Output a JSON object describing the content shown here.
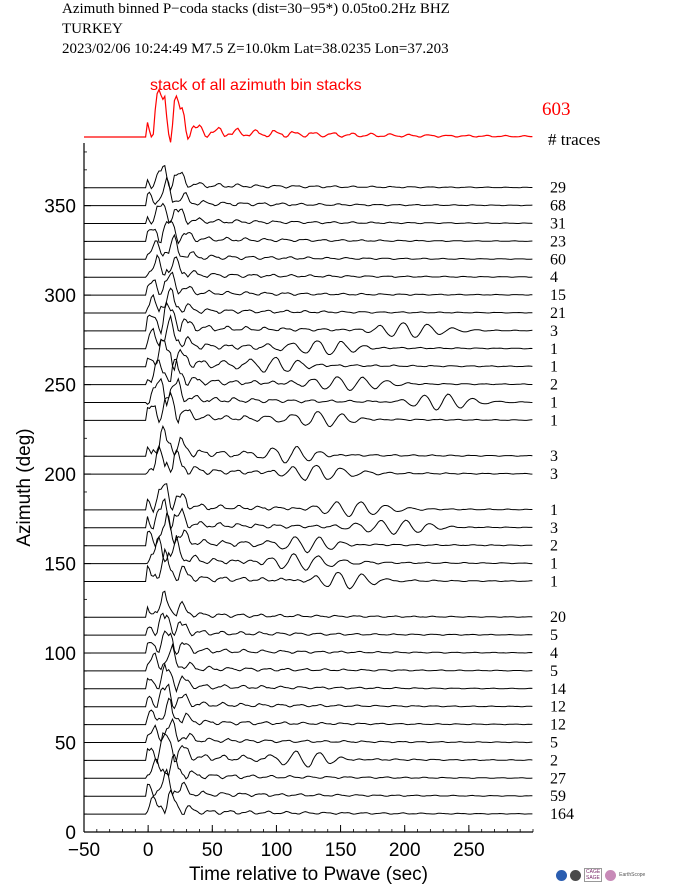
{
  "header": {
    "line1": "Azimuth binned P−coda stacks (dist=30−95*)  0.05to0.2Hz  BHZ",
    "line2": "TURKEY",
    "line3": "2023/02/06  10:24:49  M7.5  Z=10.0km Lat=38.0235 Lon=37.203"
  },
  "chart_data": {
    "type": "line",
    "title": "Azimuth binned P−coda stacks (dist=30−95*)  0.05to0.2Hz  BHZ",
    "xlabel": "Time relative to Pwave (sec)",
    "ylabel": "Azimuth (deg)",
    "xlim": [
      -50,
      300
    ],
    "ylim": [
      0,
      385
    ],
    "x_ticks": [
      "−50",
      "0",
      "50",
      "100",
      "150",
      "200",
      "250"
    ],
    "x_tick_values": [
      -50,
      0,
      50,
      100,
      150,
      200,
      250
    ],
    "y_ticks": [
      "0",
      "50",
      "100",
      "150",
      "200",
      "250",
      "300",
      "350"
    ],
    "y_tick_values": [
      0,
      50,
      100,
      150,
      200,
      250,
      300,
      350
    ],
    "stack_label": "stack of all azimuth bin stacks",
    "total_traces": "603",
    "traces_header": "# traces",
    "stack_color": "#ff0000",
    "trace_color": "#000000",
    "bins": [
      {
        "azimuth": 360,
        "traces": "29"
      },
      {
        "azimuth": 350,
        "traces": "68"
      },
      {
        "azimuth": 340,
        "traces": "31"
      },
      {
        "azimuth": 330,
        "traces": "23"
      },
      {
        "azimuth": 320,
        "traces": "60"
      },
      {
        "azimuth": 310,
        "traces": "4"
      },
      {
        "azimuth": 300,
        "traces": "15"
      },
      {
        "azimuth": 290,
        "traces": "21"
      },
      {
        "azimuth": 280,
        "traces": "3"
      },
      {
        "azimuth": 270,
        "traces": "1"
      },
      {
        "azimuth": 260,
        "traces": "1"
      },
      {
        "azimuth": 250,
        "traces": "2"
      },
      {
        "azimuth": 240,
        "traces": "1"
      },
      {
        "azimuth": 230,
        "traces": "1"
      },
      {
        "azimuth": 210,
        "traces": "3"
      },
      {
        "azimuth": 200,
        "traces": "3"
      },
      {
        "azimuth": 180,
        "traces": "1"
      },
      {
        "azimuth": 170,
        "traces": "3"
      },
      {
        "azimuth": 160,
        "traces": "2"
      },
      {
        "azimuth": 150,
        "traces": "1"
      },
      {
        "azimuth": 140,
        "traces": "1"
      },
      {
        "azimuth": 120,
        "traces": "20"
      },
      {
        "azimuth": 110,
        "traces": "5"
      },
      {
        "azimuth": 100,
        "traces": "4"
      },
      {
        "azimuth": 90,
        "traces": "5"
      },
      {
        "azimuth": 80,
        "traces": "14"
      },
      {
        "azimuth": 70,
        "traces": "12"
      },
      {
        "azimuth": 60,
        "traces": "12"
      },
      {
        "azimuth": 50,
        "traces": "5"
      },
      {
        "azimuth": 40,
        "traces": "2"
      },
      {
        "azimuth": 30,
        "traces": "27"
      },
      {
        "azimuth": 20,
        "traces": "59"
      },
      {
        "azimuth": 10,
        "traces": "164"
      }
    ]
  }
}
